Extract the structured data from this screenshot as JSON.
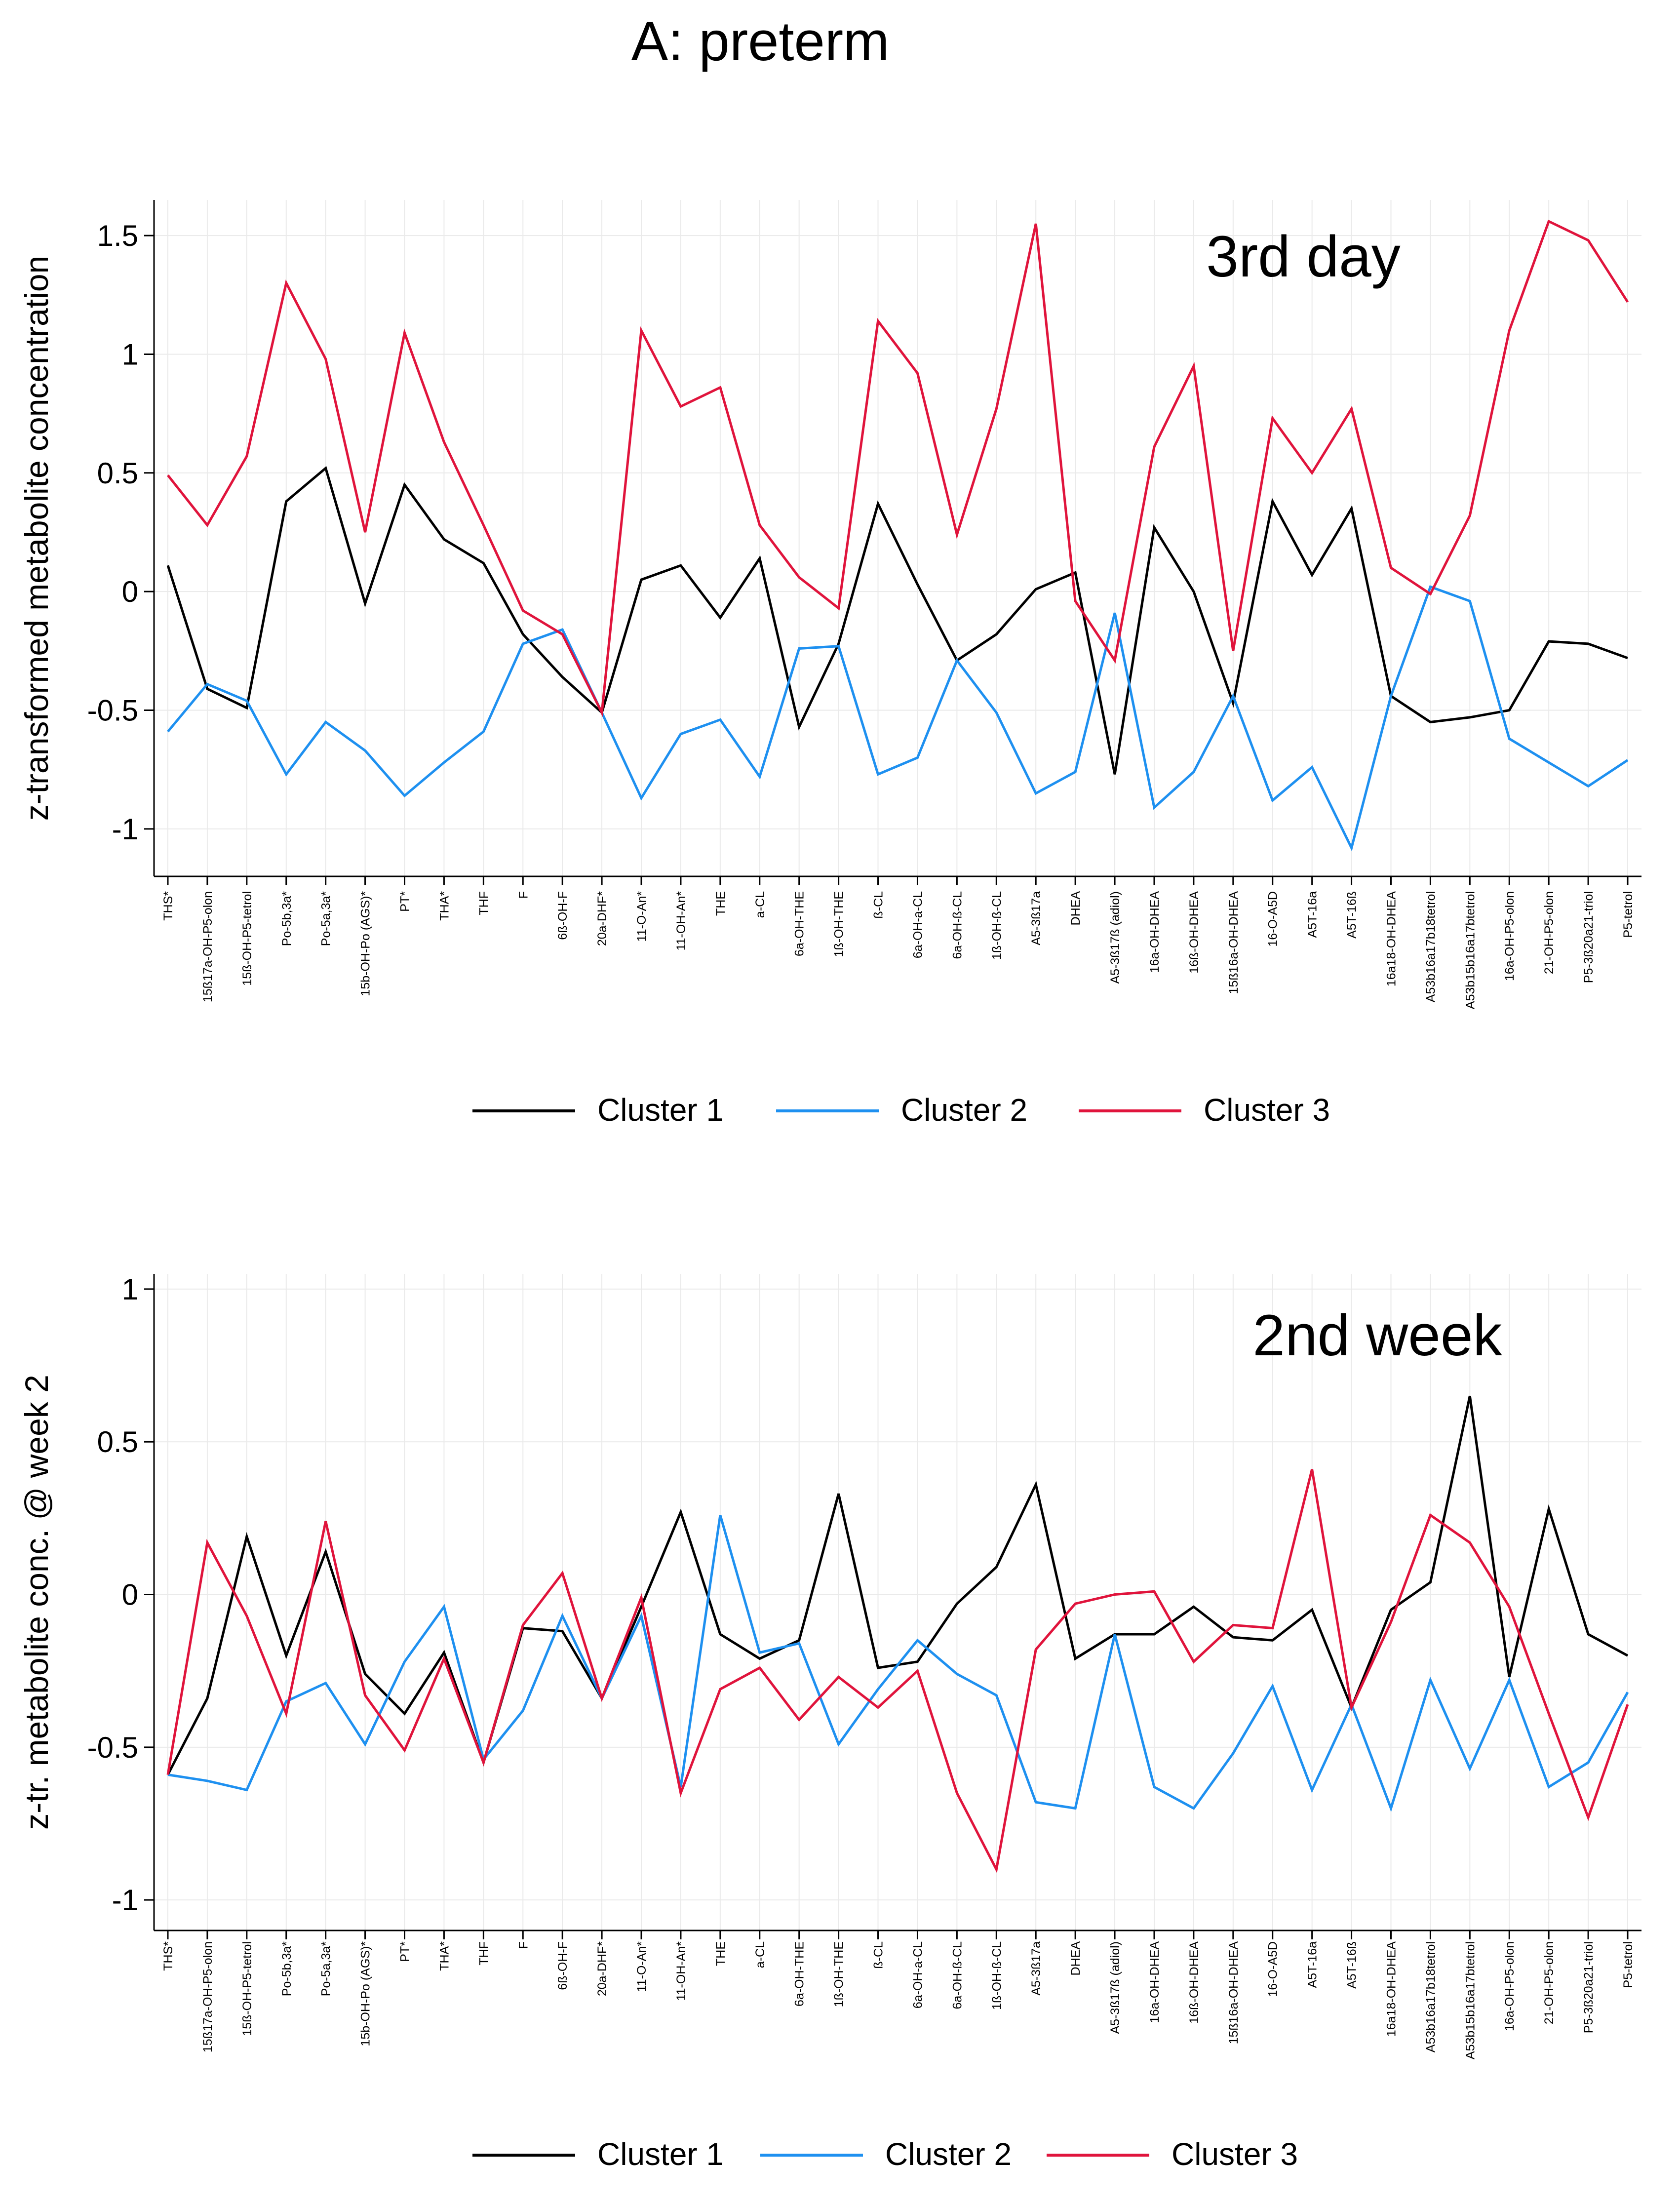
{
  "title": "A: preterm",
  "colors": {
    "Cluster 1": "#000000",
    "Cluster 2": "#1e90f0",
    "Cluster 3": "#e0143c"
  },
  "chart_data": [
    {
      "type": "line",
      "panel_label": "3rd day",
      "ylabel": "z-transformed metabolite concentration",
      "ylim": [
        -1.2,
        1.65
      ],
      "yticks": [
        -1,
        -0.5,
        0,
        0.5,
        1,
        1.5
      ],
      "ytick_labels": [
        "-1",
        "-0.5",
        "0",
        "0.5",
        "1",
        "1.5"
      ],
      "grid": true,
      "legend": "bottom",
      "categories": [
        "THS*",
        "15ß17a-OH-P5-olon",
        "15ß-OH-P5-tetrol",
        "Po-5b,3a*",
        "Po-5a,3a*",
        "15b-OH-Po (AGS)*",
        "PT*",
        "THA*",
        "THF",
        "F",
        "6ß-OH-F",
        "20a-DHF*",
        "11-O-An*",
        "11-OH-An*",
        "THE",
        "a-CL",
        "6a-OH-THE",
        "1ß-OH-THE",
        "ß-CL",
        "6a-OH-a-CL",
        "6a-OH-ß-CL",
        "1ß-OH-ß-CL",
        "A5-3ß17a",
        "DHEA",
        "A5-3ß17ß (adiol)",
        "16a-OH-DHEA",
        "16ß-OH-DHEA",
        "15ß16a-OH-DHEA",
        "16-O-A5D",
        "A5T-16a",
        "A5T-16ß",
        "16a18-OH-DHEA",
        "A53b16a17b18tetrol",
        "A53b15b16a17btetrol",
        "16a-OH-P5-olon",
        "21-OH-P5-olon",
        "P5-3ß20a21-triol",
        "P5-tetrol"
      ],
      "series": [
        {
          "name": "Cluster 1",
          "values": [
            0.11,
            -0.41,
            -0.49,
            0.38,
            0.52,
            -0.05,
            0.45,
            0.22,
            0.12,
            -0.18,
            -0.36,
            -0.51,
            0.05,
            0.11,
            -0.11,
            0.14,
            -0.57,
            -0.22,
            0.37,
            0.03,
            -0.29,
            -0.18,
            0.01,
            0.08,
            -0.77,
            0.27,
            0.0,
            -0.47,
            0.38,
            0.07,
            0.35,
            -0.44,
            -0.55,
            -0.53,
            -0.5,
            -0.21,
            -0.22,
            -0.28
          ]
        },
        {
          "name": "Cluster 2",
          "values": [
            -0.59,
            -0.39,
            -0.46,
            -0.77,
            -0.55,
            -0.67,
            -0.86,
            -0.72,
            -0.59,
            -0.22,
            -0.16,
            -0.51,
            -0.87,
            -0.6,
            -0.54,
            -0.78,
            -0.24,
            -0.23,
            -0.77,
            -0.7,
            -0.29,
            -0.51,
            -0.85,
            -0.76,
            -0.09,
            -0.91,
            -0.76,
            -0.44,
            -0.88,
            -0.74,
            -1.08,
            -0.44,
            0.02,
            -0.04,
            -0.62,
            -0.72,
            -0.82,
            -0.71
          ]
        },
        {
          "name": "Cluster 3",
          "values": [
            0.49,
            0.28,
            0.57,
            1.3,
            0.98,
            0.25,
            1.09,
            0.63,
            0.28,
            -0.08,
            -0.18,
            -0.51,
            1.1,
            0.78,
            0.86,
            0.28,
            0.06,
            -0.07,
            1.14,
            0.92,
            0.24,
            0.77,
            1.55,
            -0.04,
            -0.29,
            0.61,
            0.95,
            -0.25,
            0.73,
            0.5,
            0.77,
            0.1,
            -0.01,
            0.32,
            1.1,
            1.56,
            1.48,
            1.22
          ]
        }
      ]
    },
    {
      "type": "line",
      "panel_label": "2nd week",
      "ylabel": "z-tr. metabolite conc. @ week 2",
      "ylim": [
        -1.1,
        1.05
      ],
      "yticks": [
        -1,
        -0.5,
        0,
        0.5,
        1
      ],
      "ytick_labels": [
        "-1",
        "-0.5",
        "0",
        "0.5",
        "1"
      ],
      "grid": true,
      "legend": "bottom",
      "categories": [
        "THS*",
        "15ß17a-OH-P5-olon",
        "15ß-OH-P5-tetrol",
        "Po-5b,3a*",
        "Po-5a,3a*",
        "15b-OH-Po (AGS)*",
        "PT*",
        "THA*",
        "THF",
        "F",
        "6ß-OH-F",
        "20a-DHF*",
        "11-O-An*",
        "11-OH-An*",
        "THE",
        "a-CL",
        "6a-OH-THE",
        "1ß-OH-THE",
        "ß-CL",
        "6a-OH-a-CL",
        "6a-OH-ß-CL",
        "1ß-OH-ß-CL",
        "A5-3ß17a",
        "DHEA",
        "A5-3ß17ß (adiol)",
        "16a-OH-DHEA",
        "16ß-OH-DHEA",
        "15ß16a-OH-DHEA",
        "16-O-A5D",
        "A5T-16a",
        "A5T-16ß",
        "16a18-OH-DHEA",
        "A53b16a17b18tetrol",
        "A53b15b16a17btetrol",
        "16a-OH-P5-olon",
        "21-OH-P5-olon",
        "P5-3ß20a21-triol",
        "P5-tetrol"
      ],
      "series": [
        {
          "name": "Cluster 1",
          "values": [
            -0.59,
            -0.34,
            0.19,
            -0.2,
            0.14,
            -0.26,
            -0.39,
            -0.19,
            -0.55,
            -0.11,
            -0.12,
            -0.34,
            -0.04,
            0.27,
            -0.13,
            -0.21,
            -0.15,
            0.33,
            -0.24,
            -0.22,
            -0.03,
            0.09,
            0.36,
            -0.21,
            -0.13,
            -0.13,
            -0.04,
            -0.14,
            -0.15,
            -0.05,
            -0.37,
            -0.05,
            0.04,
            0.65,
            -0.27,
            0.28,
            -0.13,
            -0.2
          ]
        },
        {
          "name": "Cluster 2",
          "values": [
            -0.59,
            -0.61,
            -0.64,
            -0.35,
            -0.29,
            -0.49,
            -0.22,
            -0.04,
            -0.54,
            -0.38,
            -0.07,
            -0.34,
            -0.07,
            -0.63,
            0.26,
            -0.19,
            -0.16,
            -0.49,
            -0.31,
            -0.15,
            -0.26,
            -0.33,
            -0.68,
            -0.7,
            -0.13,
            -0.63,
            -0.7,
            -0.52,
            -0.3,
            -0.64,
            -0.36,
            -0.7,
            -0.28,
            -0.57,
            -0.28,
            -0.63,
            -0.55,
            -0.32
          ]
        },
        {
          "name": "Cluster 3",
          "values": [
            -0.59,
            0.17,
            -0.07,
            -0.39,
            0.24,
            -0.33,
            -0.51,
            -0.21,
            -0.55,
            -0.1,
            0.07,
            -0.34,
            -0.01,
            -0.65,
            -0.31,
            -0.24,
            -0.41,
            -0.27,
            -0.37,
            -0.25,
            -0.65,
            -0.9,
            -0.18,
            -0.03,
            0.0,
            0.01,
            -0.22,
            -0.1,
            -0.11,
            0.41,
            -0.37,
            -0.09,
            0.26,
            0.17,
            -0.04,
            -0.39,
            -0.73,
            -0.36
          ]
        }
      ]
    }
  ]
}
